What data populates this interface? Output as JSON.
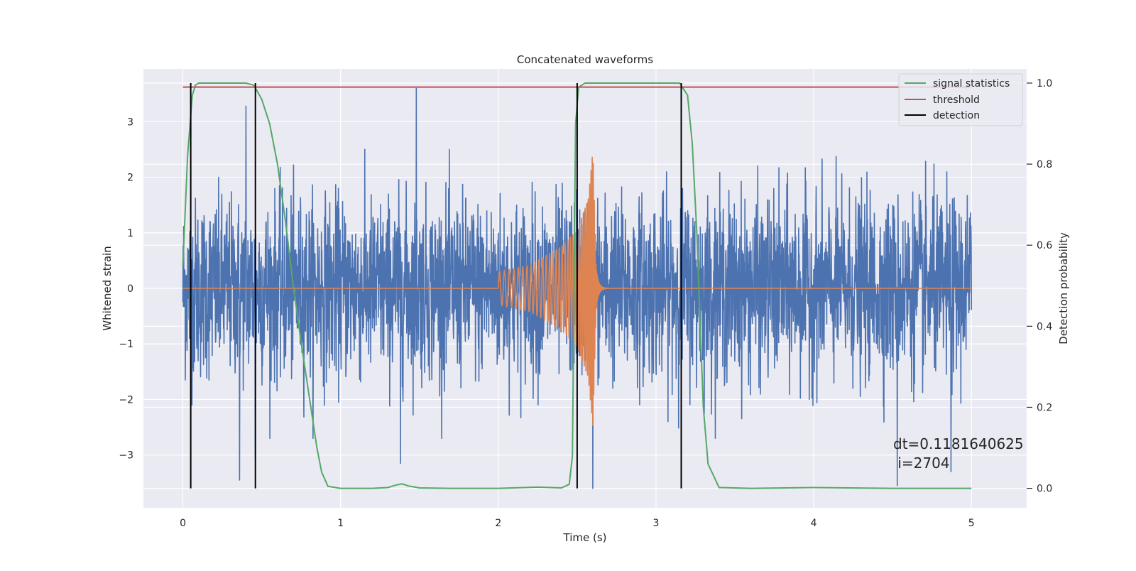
{
  "chart_data": {
    "type": "line",
    "title": "Concatenated waveforms",
    "xlabel": "Time (s)",
    "ylabel": "Whitened strain",
    "ylabel_right": "Detection probability",
    "xlim": [
      -0.25,
      5.35
    ],
    "ylim": [
      -3.95,
      3.95
    ],
    "ylim_right": [
      -0.048,
      1.035
    ],
    "x_ticks": [
      0,
      1,
      2,
      3,
      4,
      5
    ],
    "y_ticks": [
      -3,
      -2,
      -1,
      0,
      1,
      2,
      3
    ],
    "y_ticks_right": [
      0.0,
      0.2,
      0.4,
      0.6,
      0.8,
      1.0
    ],
    "y_ticks_right_labels": [
      "0.0",
      "0.2",
      "0.4",
      "0.6",
      "0.8",
      "1.0"
    ],
    "grid": true,
    "legend_position": "top-right",
    "legend": [
      "signal statistics",
      "threshold",
      "detection"
    ],
    "series": [
      {
        "name": "",
        "axis": "left",
        "color": "#4c72b0",
        "kind": "noise",
        "x_range": [
          0,
          5
        ],
        "typical_peak_abs": 2.5,
        "extreme_peaks": [
          [
            1.48,
            3.6
          ],
          [
            0.36,
            -3.45
          ],
          [
            0.4,
            3.28
          ],
          [
            4.53,
            -3.55
          ],
          [
            4.87,
            -3.3
          ],
          [
            2.6,
            -3.6
          ],
          [
            1.38,
            -3.15
          ],
          [
            0.46,
            -3.05
          ]
        ]
      },
      {
        "name": "",
        "axis": "left",
        "color": "#dd8452",
        "kind": "chirp",
        "x_range": [
          2.0,
          2.62
        ],
        "envelope": [
          [
            2.0,
            0.3
          ],
          [
            2.2,
            0.42
          ],
          [
            2.4,
            0.75
          ],
          [
            2.5,
            1.05
          ],
          [
            2.57,
            1.6
          ],
          [
            2.6,
            2.5
          ],
          [
            2.62,
            0.4
          ],
          [
            2.66,
            0.05
          ]
        ]
      },
      {
        "name": "signal statistics",
        "axis": "right",
        "color": "#55a868",
        "x": [
          0,
          0.03,
          0.06,
          0.08,
          0.1,
          0.2,
          0.3,
          0.4,
          0.45,
          0.5,
          0.55,
          0.6,
          0.65,
          0.7,
          0.75,
          0.8,
          0.85,
          0.88,
          0.92,
          1.0,
          1.2,
          1.3,
          1.35,
          1.39,
          1.43,
          1.5,
          1.7,
          2.0,
          2.25,
          2.4,
          2.45,
          2.47,
          2.49,
          2.51,
          2.55,
          2.7,
          3.0,
          3.15,
          3.2,
          3.23,
          3.26,
          3.28,
          3.3,
          3.33,
          3.4,
          3.6,
          4.0,
          4.5,
          5.0
        ],
        "y": [
          0.55,
          0.82,
          0.97,
          0.995,
          1.0,
          1.0,
          1.0,
          1.0,
          0.995,
          0.96,
          0.9,
          0.8,
          0.66,
          0.5,
          0.36,
          0.23,
          0.1,
          0.04,
          0.005,
          0.0,
          0.0,
          0.002,
          0.008,
          0.011,
          0.006,
          0.001,
          0.0,
          0.0,
          0.003,
          0.001,
          0.01,
          0.08,
          0.9,
          0.99,
          1.0,
          1.0,
          1.0,
          1.0,
          0.97,
          0.85,
          0.62,
          0.4,
          0.2,
          0.06,
          0.002,
          0.0,
          0.002,
          0.0,
          0.0
        ]
      },
      {
        "name": "threshold",
        "axis": "right",
        "color": "#c44e52",
        "x": [
          0,
          5
        ],
        "y": [
          0.99,
          0.99
        ]
      }
    ],
    "detections": {
      "name": "detection",
      "color": "#000000",
      "x": [
        0.05,
        0.46,
        2.5,
        3.16
      ]
    },
    "annotation": [
      "dt=0.1181640625",
      " i=2704"
    ]
  }
}
